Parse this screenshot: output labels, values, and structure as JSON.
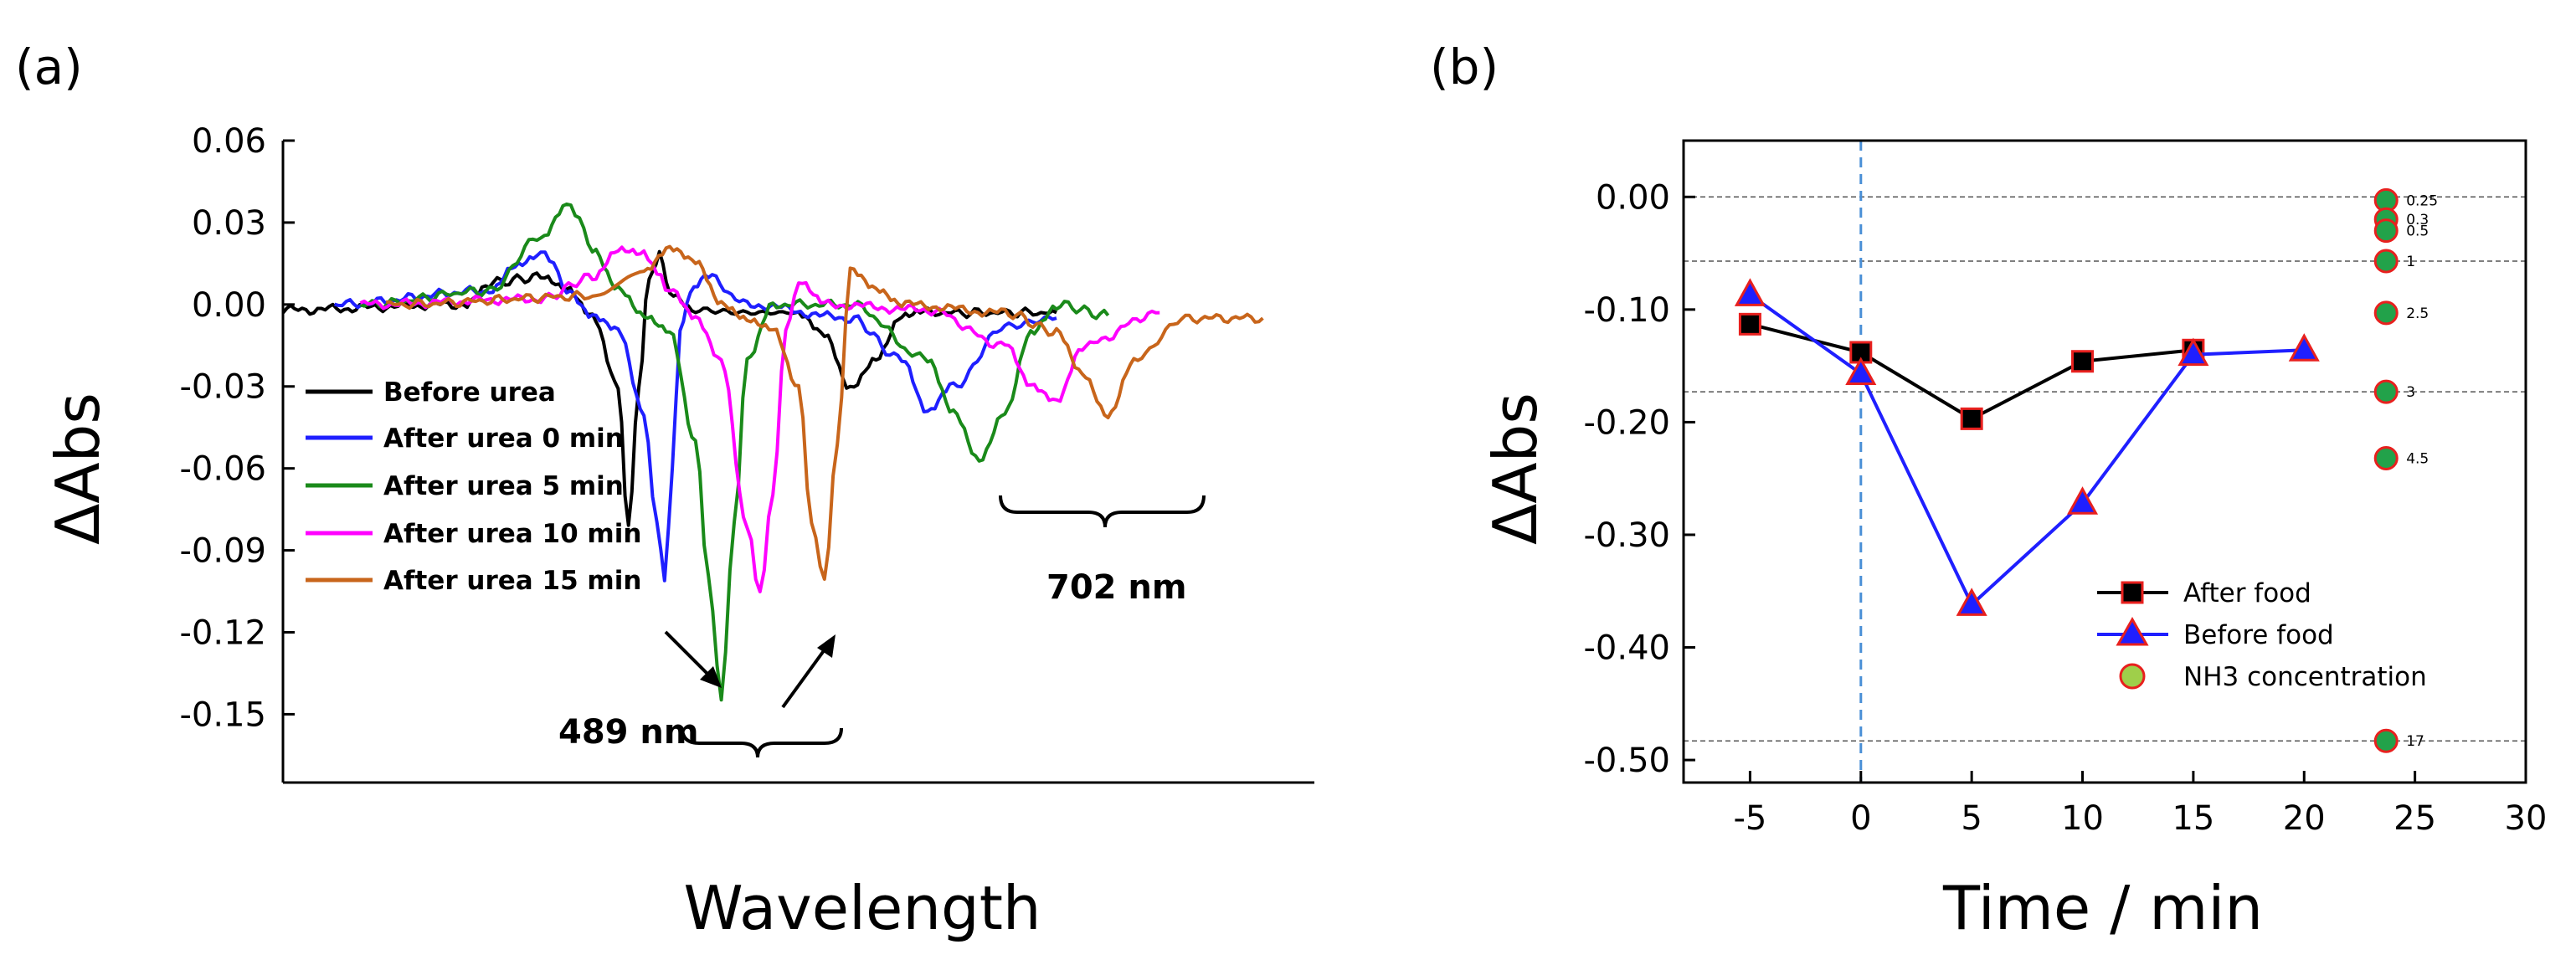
{
  "figure": {
    "label_a": "(a)",
    "label_b": "(b)"
  },
  "chart_data": [
    {
      "type": "line",
      "panel": "a",
      "xlabel": "Wavelength",
      "ylabel": "ΔAbs",
      "ylim": [
        -0.175,
        0.06
      ],
      "xlim": [
        400,
        800
      ],
      "yticks": [
        0.06,
        0.03,
        0.0,
        -0.03,
        -0.06,
        -0.09,
        -0.12,
        -0.15
      ],
      "ytick_labels": [
        "0.06",
        "0.03",
        "0.00",
        "-0.03",
        "-0.06",
        "-0.09",
        "-0.12",
        "-0.15"
      ],
      "annotations": [
        "489 nm",
        "702 nm"
      ],
      "series": [
        {
          "name": "Before urea",
          "color": "#000000",
          "x": [
            400,
            470,
            480,
            500,
            510,
            520,
            530,
            534,
            538,
            542,
            546,
            550,
            560,
            580,
            600,
            610,
            620,
            630,
            640,
            650,
            700
          ],
          "y": [
            -0.002,
            0.0,
            0.008,
            0.01,
            0.005,
            -0.005,
            -0.03,
            -0.082,
            -0.03,
            0.01,
            0.018,
            0.005,
            -0.002,
            -0.003,
            -0.003,
            -0.01,
            -0.03,
            -0.02,
            -0.005,
            -0.003,
            -0.003
          ]
        },
        {
          "name": "After urea 0 min",
          "color": "#1f1fff",
          "x": [
            420,
            480,
            490,
            500,
            505,
            510,
            520,
            530,
            540,
            545,
            548,
            551,
            554,
            558,
            565,
            580,
            620,
            640,
            650,
            660,
            680,
            700
          ],
          "y": [
            0.0,
            0.005,
            0.015,
            0.019,
            0.015,
            0.005,
            -0.005,
            -0.01,
            -0.04,
            -0.08,
            -0.1,
            -0.06,
            -0.01,
            0.005,
            0.01,
            0.0,
            -0.005,
            -0.02,
            -0.04,
            -0.03,
            -0.008,
            -0.005
          ]
        },
        {
          "name": "After urea 5 min",
          "color": "#1a8a1a",
          "x": [
            430,
            480,
            500,
            510,
            515,
            520,
            530,
            540,
            550,
            560,
            565,
            570,
            575,
            580,
            590,
            620,
            650,
            660,
            670,
            680,
            690,
            700,
            720
          ],
          "y": [
            0.0,
            0.005,
            0.025,
            0.037,
            0.032,
            0.02,
            0.005,
            -0.005,
            -0.01,
            -0.05,
            -0.1,
            -0.143,
            -0.08,
            -0.02,
            0.0,
            0.0,
            -0.02,
            -0.04,
            -0.058,
            -0.04,
            -0.01,
            0.0,
            -0.004
          ]
        },
        {
          "name": "After urea 10 min",
          "color": "#ff00ff",
          "x": [
            430,
            500,
            520,
            530,
            540,
            545,
            550,
            560,
            570,
            580,
            585,
            590,
            595,
            600,
            610,
            650,
            680,
            690,
            700,
            710,
            740
          ],
          "y": [
            0.0,
            0.002,
            0.01,
            0.02,
            0.018,
            0.012,
            0.005,
            -0.005,
            -0.02,
            -0.08,
            -0.106,
            -0.07,
            -0.01,
            0.008,
            0.0,
            -0.002,
            -0.015,
            -0.03,
            -0.035,
            -0.015,
            -0.003
          ]
        },
        {
          "name": "After urea 15 min",
          "color": "#c8651b",
          "x": [
            440,
            520,
            540,
            550,
            560,
            570,
            580,
            590,
            600,
            605,
            610,
            615,
            620,
            630,
            640,
            680,
            700,
            710,
            720,
            730,
            750,
            780
          ],
          "y": [
            0.0,
            0.003,
            0.012,
            0.02,
            0.015,
            0.0,
            -0.005,
            -0.008,
            -0.03,
            -0.08,
            -0.1,
            -0.05,
            0.012,
            0.005,
            0.0,
            -0.003,
            -0.01,
            -0.025,
            -0.04,
            -0.02,
            -0.005,
            -0.005
          ]
        }
      ]
    },
    {
      "type": "line",
      "panel": "b",
      "xlabel": "Time / min",
      "ylabel": "ΔAbs",
      "xlim": [
        -8,
        30
      ],
      "ylim": [
        -0.52,
        0.05
      ],
      "xticks": [
        -5,
        0,
        5,
        10,
        15,
        20,
        25,
        30
      ],
      "xtick_labels": [
        "-5",
        "0",
        "5",
        "10",
        "15",
        "20",
        "25",
        "30"
      ],
      "yticks": [
        0.0,
        -0.1,
        -0.2,
        -0.3,
        -0.4,
        -0.5
      ],
      "ytick_labels": [
        "0.00",
        "-0.10",
        "-0.20",
        "-0.30",
        "-0.40",
        "-0.50"
      ],
      "vline_x": 0,
      "series": [
        {
          "name": "After food",
          "line_color": "#000000",
          "marker": "square",
          "marker_fill": "#000000",
          "marker_edge": "#e8201e",
          "x": [
            -5,
            0,
            5,
            10,
            15
          ],
          "y": [
            -0.113,
            -0.138,
            -0.197,
            -0.146,
            -0.136
          ]
        },
        {
          "name": "Before food",
          "line_color": "#1f1fff",
          "marker": "triangle",
          "marker_fill": "#1f1fff",
          "marker_edge": "#e8201e",
          "x": [
            -5,
            0,
            5,
            10,
            15,
            20
          ],
          "y": [
            -0.087,
            -0.157,
            -0.362,
            -0.272,
            -0.14,
            -0.136
          ]
        },
        {
          "name": "NH3 concentration",
          "marker": "circle",
          "marker_fill": "#22a24a",
          "marker_edge": "#e8201e",
          "legend_fill": "#9fcf4a",
          "x": [
            23.7,
            23.7,
            23.7,
            23.7,
            23.7,
            23.7,
            23.7,
            23.7
          ],
          "y": [
            -0.003,
            -0.02,
            -0.03,
            -0.057,
            -0.103,
            -0.173,
            -0.232,
            -0.483
          ],
          "labels": [
            "0.25",
            "0.3",
            "0.5",
            "1",
            "2.5",
            "3",
            "4.5",
            "17"
          ]
        }
      ],
      "hlines_y": [
        0.0,
        -0.057,
        -0.173,
        -0.483
      ]
    }
  ]
}
